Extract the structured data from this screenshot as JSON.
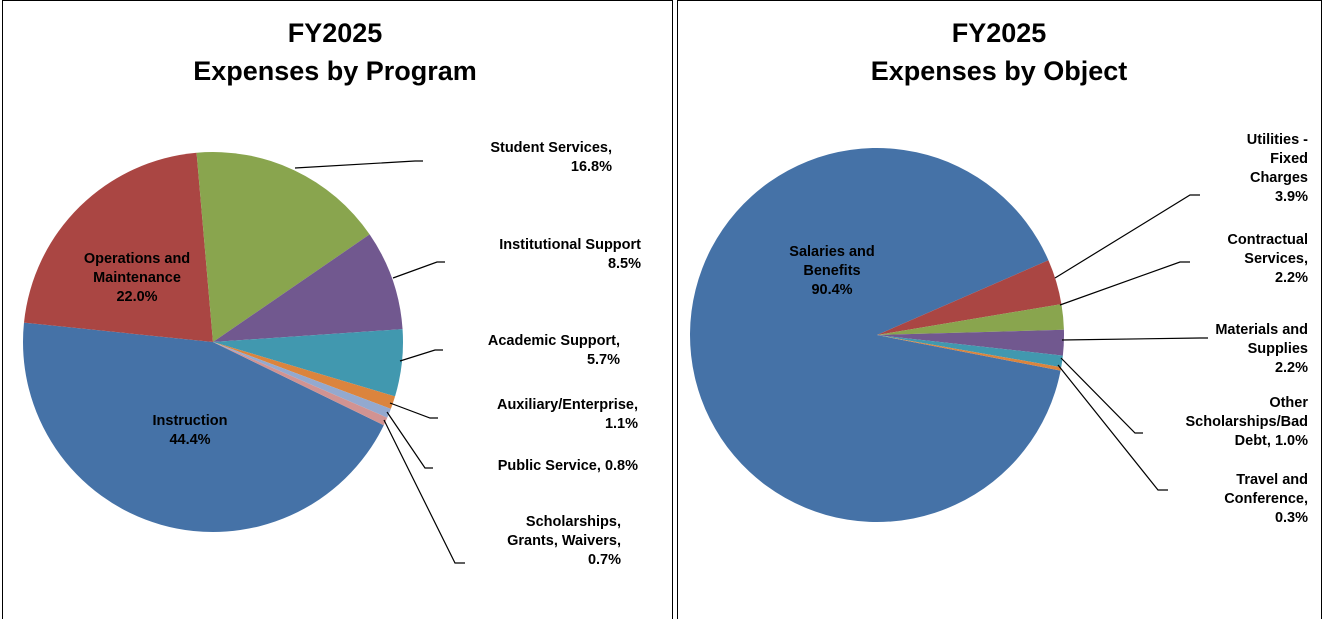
{
  "chart_data": [
    {
      "type": "pie",
      "title": "FY2025",
      "subtitle": "Expenses by Program",
      "categories": [
        "Instruction",
        "Operations and Maintenance",
        "Student Services,",
        "Institutional Support",
        "Academic Support,",
        "Auxiliary/Enterprise,",
        "Public Service,",
        "Scholarships, Grants, Waivers,"
      ],
      "values": [
        44.4,
        22.0,
        16.8,
        8.5,
        5.7,
        1.1,
        0.8,
        0.7
      ],
      "value_labels": [
        "44.4%",
        "22.0%",
        "16.8%",
        "8.5%",
        "5.7%",
        "1.1%",
        "0.8%",
        "0.7%"
      ],
      "colors": [
        "#4572A7",
        "#AA4643",
        "#89A54E",
        "#71588F",
        "#4198AF",
        "#DB843D",
        "#93A9CF",
        "#D19392"
      ]
    },
    {
      "type": "pie",
      "title": "FY2025",
      "subtitle": "Expenses by Object",
      "categories": [
        "Salaries and Benefits",
        "Utilities - Fixed Charges",
        "Contractual Services,",
        "Materials and Supplies",
        "Other Scholarships/Bad Debt,",
        "Travel and Conference,"
      ],
      "values": [
        90.4,
        3.9,
        2.2,
        2.2,
        1.0,
        0.3
      ],
      "value_labels": [
        "90.4%",
        "3.9%",
        "2.2%",
        "2.2%",
        "1.0%",
        "0.3%"
      ],
      "colors": [
        "#4572A7",
        "#AA4643",
        "#89A54E",
        "#71588F",
        "#4198AF",
        "#DB843D"
      ]
    }
  ]
}
